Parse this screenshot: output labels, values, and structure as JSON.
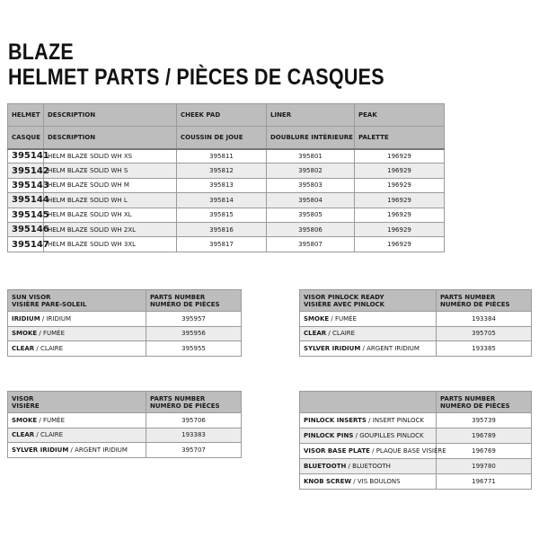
{
  "title_line1": "BLAZE",
  "title_line2": "HELMET PARTS / PIÈCES DE CASQUES",
  "colors": {
    "header_bg": "#bdbdbd",
    "alt_row_bg": "#ececec",
    "border": "#9a9a9a"
  },
  "main_table": {
    "header_en": [
      "HELMET",
      "DESCRIPTION",
      "CHEEK PAD",
      "LINER",
      "PEAK"
    ],
    "header_fr": [
      "CASQUE",
      "DESCRIPTION",
      "COUSSIN DE JOUE",
      "DOUBLURE INTÉRIEURE",
      "PALETTE"
    ],
    "rows": [
      [
        "395141",
        "HELM BLAZE SOLID WH XS",
        "395811",
        "395801",
        "196929"
      ],
      [
        "395142",
        "HELM BLAZE SOLID WH S",
        "395812",
        "395802",
        "196929"
      ],
      [
        "395143",
        "HELM BLAZE SOLID WH M",
        "395813",
        "395803",
        "196929"
      ],
      [
        "395144",
        "HELM BLAZE SOLID WH L",
        "395814",
        "395804",
        "196929"
      ],
      [
        "395145",
        "HELM BLAZE SOLID WH XL",
        "395815",
        "395805",
        "196929"
      ],
      [
        "395146",
        "HELM BLAZE SOLID WH 2XL",
        "395816",
        "395806",
        "196929"
      ],
      [
        "395147",
        "HELM BLAZE SOLID WH 3XL",
        "395817",
        "395807",
        "196929"
      ]
    ]
  },
  "sun_visor_table": {
    "header": [
      "SUN VISOR",
      "VISIÈRE PARE-SOLEIL",
      "PARTS NUMBER",
      "NUMÉRO DE PIÈCES"
    ],
    "rows": [
      {
        "en": "IRIDIUM",
        "fr": "IRIDIUM",
        "part": "395957"
      },
      {
        "en": "SMOKE",
        "fr": "FUMÉE",
        "part": "395956"
      },
      {
        "en": "CLEAR",
        "fr": "CLAIRE",
        "part": "395955"
      }
    ]
  },
  "pinlock_visor_table": {
    "header": [
      "VISOR PINLOCK READY",
      "VISIÈRE AVEC PINLOCK",
      "PARTS NUMBER",
      "NUMÉRO DE PIÈCES"
    ],
    "rows": [
      {
        "en": "SMOKE",
        "fr": "FUMÉE",
        "part": "193384"
      },
      {
        "en": "CLEAR",
        "fr": "CLAIRE",
        "part": "395705"
      },
      {
        "en": "SYLVER IRIDIUM",
        "fr": "ARGENT IRIDIUM",
        "part": "193385"
      }
    ]
  },
  "visor_table": {
    "header": [
      "VISOR",
      "VISIÈRE",
      "PARTS NUMBER",
      "NUMÉRO DE PIÈCES"
    ],
    "rows": [
      {
        "en": "SMOKE",
        "fr": "FUMÉE",
        "part": "395706"
      },
      {
        "en": "CLEAR",
        "fr": "CLAIRE",
        "part": "193383"
      },
      {
        "en": "SYLVER IRIDIUM",
        "fr": "ARGENT IRIDIUM",
        "part": "395707"
      }
    ]
  },
  "accessories_table": {
    "header": [
      "",
      "",
      "PARTS NUMBER",
      "NUMÉRO DE PIÈCES"
    ],
    "rows": [
      {
        "en": "PINLOCK INSERTS",
        "fr": "INSERT PINLOCK",
        "part": "395739"
      },
      {
        "en": "PINLOCK PINS",
        "fr": "GOUPILLES PINLOCK",
        "part": "196789"
      },
      {
        "en": "VISOR BASE PLATE",
        "fr": "PLAQUE BASE VISIÈRE",
        "part": "196769"
      },
      {
        "en": "BLUETOOTH",
        "fr": "BLUETOOTH",
        "part": "199780"
      },
      {
        "en": "KNOB SCREW",
        "fr": "VIS BOULONS",
        "part": "196771"
      }
    ]
  }
}
